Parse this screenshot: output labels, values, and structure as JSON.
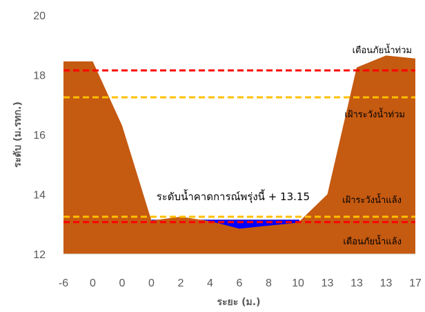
{
  "chart_data": {
    "type": "area",
    "xlabel": "ระยะ (ม.)",
    "ylabel": "ระดับ (ม.รทก.)",
    "ylim": [
      12,
      20
    ],
    "yticks": [
      12,
      14,
      16,
      18,
      20
    ],
    "categories": [
      "-6",
      "0",
      "0",
      "0",
      "2",
      "4",
      "6",
      "8",
      "10",
      "13",
      "13",
      "13",
      "17"
    ],
    "ground_profile": [
      {
        "i": 0,
        "y": 18.45
      },
      {
        "i": 1,
        "y": 18.45
      },
      {
        "i": 2,
        "y": 16.3
      },
      {
        "i": 3,
        "y": 13.12
      },
      {
        "i": 4,
        "y": 13.25
      },
      {
        "i": 5,
        "y": 13.1
      },
      {
        "i": 6,
        "y": 12.85
      },
      {
        "i": 7,
        "y": 12.95
      },
      {
        "i": 8,
        "y": 13.05
      },
      {
        "i": 9,
        "y": 14.0
      },
      {
        "i": 10,
        "y": 18.25
      },
      {
        "i": 11,
        "y": 18.65
      },
      {
        "i": 12,
        "y": 18.55
      }
    ],
    "water_level": 13.15,
    "threshold_lines": [
      {
        "name": "flood_danger",
        "value": 18.15,
        "color": "#ff0000"
      },
      {
        "name": "flood_watch",
        "value": 17.25,
        "color": "#ffc000"
      },
      {
        "name": "drought_watch",
        "value": 13.25,
        "color": "#ffc000"
      },
      {
        "name": "drought_danger",
        "value": 13.07,
        "color": "#ff0000"
      }
    ],
    "annotations": {
      "flood_danger": "เตือนภัยน้ำท่วม",
      "flood_watch": "เฝ้าระวังน้ำท่วม",
      "forecast": "ระดับน้ำคาดการณ์พรุ่งนี้ + 13.15",
      "drought_watch": "เฝ้าระวังน้ำแล้ง",
      "drought_danger": "เตือนภัยน้ำแล้ง"
    },
    "colors": {
      "ground": "#c55a11",
      "water": "#0000ff",
      "axis": "#d9d9d9",
      "text": "#595959"
    }
  }
}
